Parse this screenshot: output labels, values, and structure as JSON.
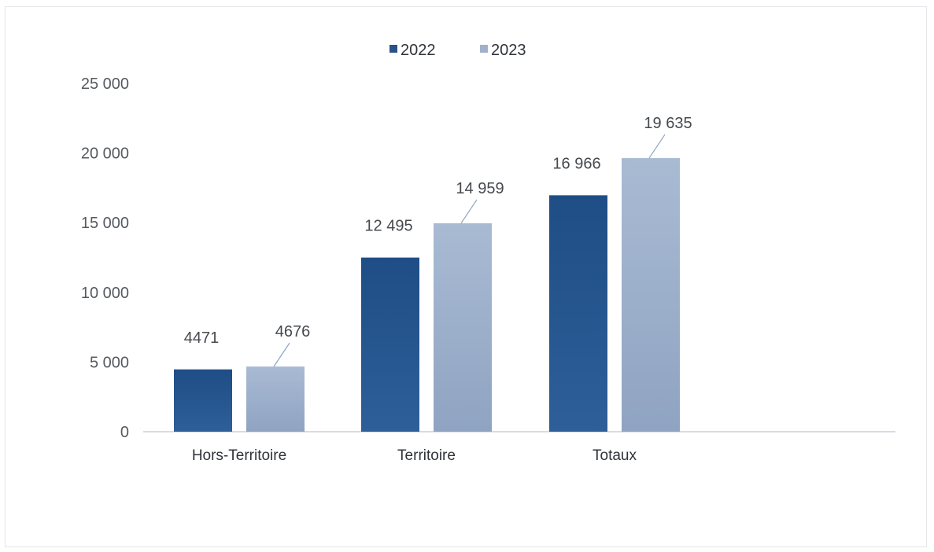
{
  "chart_data": {
    "type": "bar",
    "categories": [
      "Hors-Territoire",
      "Territoire",
      "Totaux"
    ],
    "series": [
      {
        "name": "2022",
        "values": [
          4471,
          12495,
          16966
        ],
        "labels": [
          "4471",
          "12 495",
          "16 966"
        ],
        "color": "#2a5189"
      },
      {
        "name": "2023",
        "values": [
          4676,
          14959,
          19635
        ],
        "labels": [
          "4676",
          "14 959",
          "19 635"
        ],
        "color": "#9fb1cc"
      }
    ],
    "ylim": [
      0,
      25000
    ],
    "yticks": [
      0,
      5000,
      10000,
      15000,
      20000,
      25000
    ],
    "ytick_labels": [
      "0",
      "5 000",
      "10 000",
      "15 000",
      "20 000",
      "25 000"
    ],
    "legend_position": "top-center",
    "grid": false,
    "title": "",
    "xlabel": "",
    "ylabel": ""
  }
}
